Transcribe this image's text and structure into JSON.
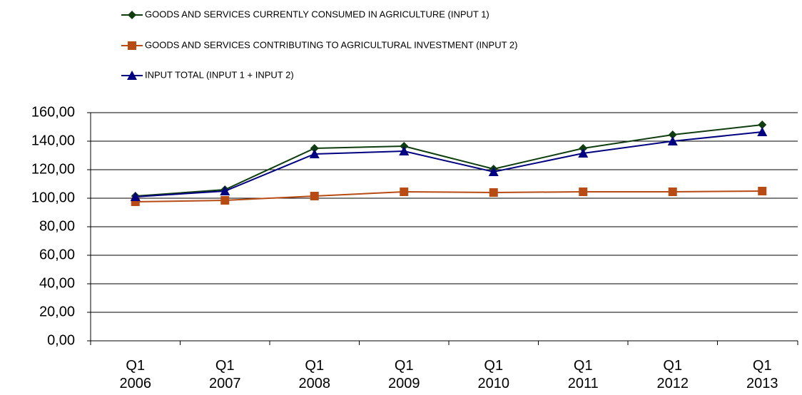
{
  "chart_data": {
    "type": "line",
    "categories": [
      "Q1 2006",
      "Q1 2007",
      "Q1 2008",
      "Q1 2009",
      "Q1 2010",
      "Q1 2011",
      "Q1 2012",
      "Q1 2013"
    ],
    "series": [
      {
        "name": "GOODS AND SERVICES CURRENTLY CONSUMED IN AGRICULTURE (INPUT 1)",
        "color": "#0f3d0f",
        "marker": "diamond",
        "values": [
          101.5,
          106,
          135,
          136.5,
          120.5,
          135,
          144.5,
          151.5
        ]
      },
      {
        "name": "GOODS AND SERVICES CONTRIBUTING TO AGRICULTURAL INVESTMENT (INPUT 2)",
        "color": "#b84a14",
        "marker": "square",
        "values": [
          97.5,
          98.5,
          101.5,
          104.5,
          104,
          104.5,
          104.5,
          105
        ]
      },
      {
        "name": "INPUT TOTAL (INPUT 1 + INPUT 2)",
        "color": "#000080",
        "marker": "triangle",
        "values": [
          101,
          105,
          131,
          133,
          118.5,
          131.5,
          140,
          146.5
        ]
      }
    ],
    "ylim": [
      0,
      160
    ],
    "yticks": [
      {
        "value": 0,
        "label": "0,00"
      },
      {
        "value": 20,
        "label": "20,00"
      },
      {
        "value": 40,
        "label": "40,00"
      },
      {
        "value": 60,
        "label": "60,00"
      },
      {
        "value": 80,
        "label": "80,00"
      },
      {
        "value": 100,
        "label": "100,00"
      },
      {
        "value": 120,
        "label": "120,00"
      },
      {
        "value": 140,
        "label": "140,00"
      },
      {
        "value": 160,
        "label": "160,00"
      }
    ],
    "grid": true,
    "legend": "top"
  }
}
